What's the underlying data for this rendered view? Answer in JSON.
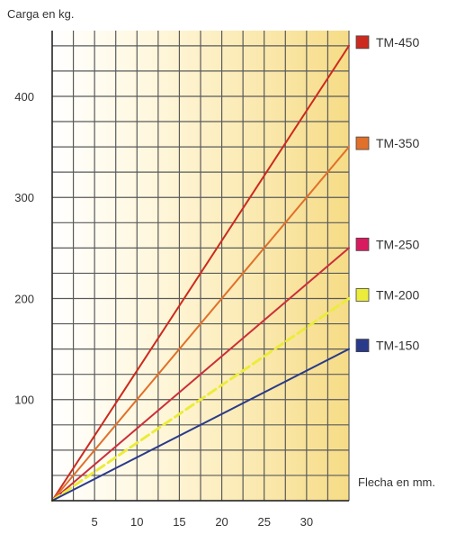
{
  "chart_data": {
    "type": "line",
    "y_axis_title": "Carga en kg.",
    "x_axis_title": "Flecha en mm.",
    "xlim": [
      0,
      35
    ],
    "ylim": [
      0,
      465
    ],
    "x_ticks": [
      5,
      10,
      15,
      20,
      25,
      30
    ],
    "y_ticks": [
      100,
      200,
      300,
      400
    ],
    "grid": true,
    "legend_position": "right",
    "series": [
      {
        "name": "TM-450",
        "color": "#cc2a1e",
        "x": [
          0,
          35
        ],
        "y": [
          0,
          450
        ],
        "dashed": false
      },
      {
        "name": "TM-350",
        "color": "#e0702a",
        "x": [
          0,
          35
        ],
        "y": [
          0,
          350
        ],
        "dashed": false
      },
      {
        "name": "TM-250",
        "color": "#cc2e3a",
        "swatch": "#d81b60",
        "x": [
          0,
          35
        ],
        "y": [
          0,
          250
        ],
        "dashed": false
      },
      {
        "name": "TM-200",
        "color": "#ecec3a",
        "x": [
          0,
          35
        ],
        "y": [
          0,
          200
        ],
        "dashed": true
      },
      {
        "name": "TM-150",
        "color": "#2a3a8a",
        "x": [
          0,
          35
        ],
        "y": [
          0,
          150
        ],
        "dashed": false
      }
    ]
  }
}
